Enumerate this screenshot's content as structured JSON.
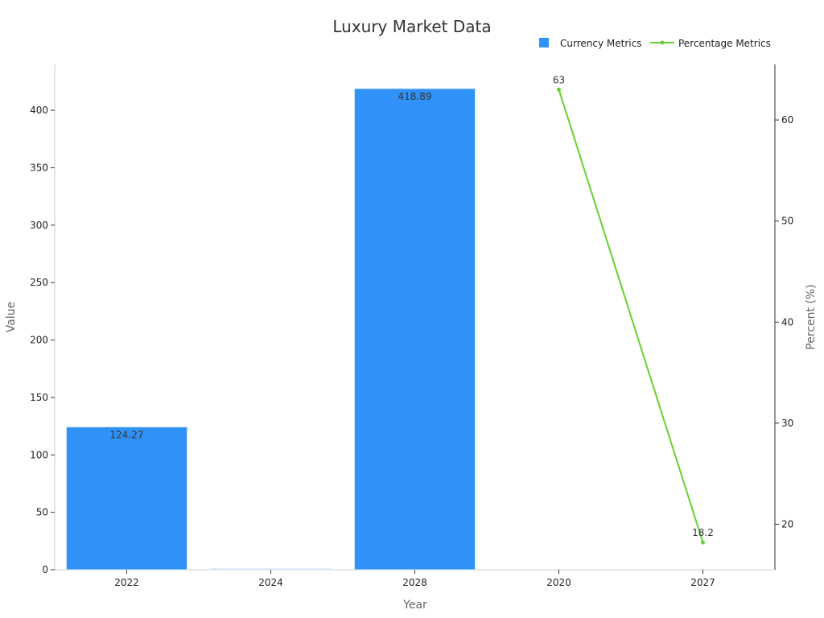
{
  "chart_data": {
    "type": "bar",
    "title": "Luxury Market Data",
    "xlabel": "Year",
    "ylabel": "Value",
    "y2label": "Percent (%)",
    "categories": [
      "2022",
      "2024",
      "2028",
      "2020",
      "2027"
    ],
    "ylim": [
      0,
      440
    ],
    "y2lim": [
      15.5,
      65.5
    ],
    "yticks": [
      0,
      50,
      100,
      150,
      200,
      250,
      300,
      350,
      400
    ],
    "y2ticks": [
      20,
      30,
      40,
      50,
      60
    ],
    "legend_position": "top-right",
    "grid": false,
    "series": [
      {
        "name": "Currency Metrics",
        "type": "bar",
        "axis": "left",
        "color": "#3092f8",
        "values": [
          124.27,
          0.3,
          418.89,
          null,
          null
        ],
        "labels": [
          "124.27",
          "",
          "418.89",
          "",
          ""
        ]
      },
      {
        "name": "Percentage Metrics",
        "type": "line",
        "axis": "right",
        "color": "#66d12c",
        "values": [
          null,
          null,
          null,
          63,
          18.2
        ],
        "labels": [
          "",
          "",
          "",
          "63",
          "18.2"
        ]
      }
    ]
  }
}
